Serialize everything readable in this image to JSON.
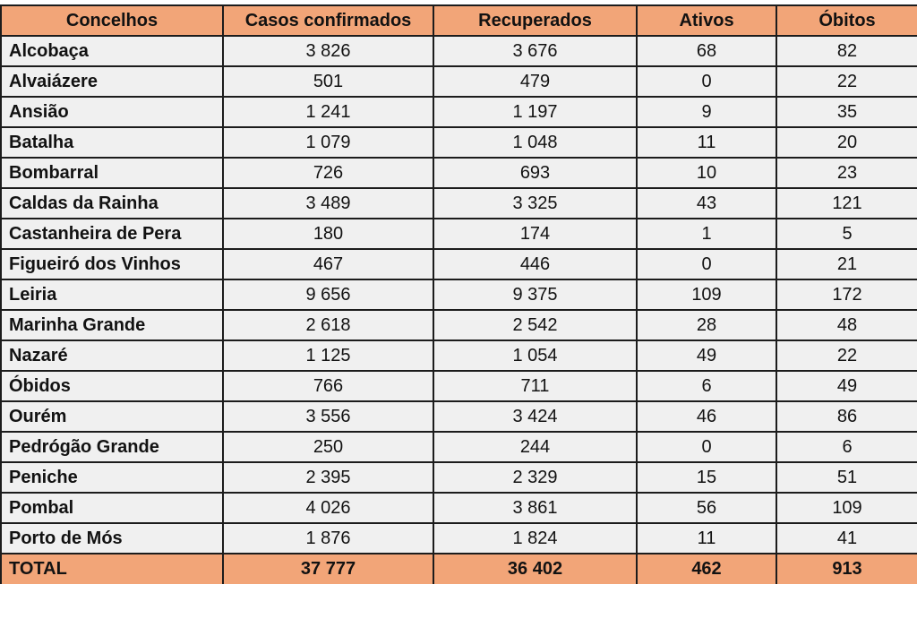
{
  "colors": {
    "header_bg": "#F2A578",
    "total_bg": "#F2A578",
    "row_bg": "#F0F0F0",
    "border": "#1C1C1C",
    "text": "#121212",
    "page_bg": "#FFFFFF"
  },
  "table": {
    "columns": [
      "Concelhos",
      "Casos confirmados",
      "Recuperados",
      "Ativos",
      "Óbitos"
    ],
    "rows": [
      {
        "name": "Alcobaça",
        "values": [
          "3 826",
          "3 676",
          "68",
          "82"
        ]
      },
      {
        "name": "Alvaiázere",
        "values": [
          "501",
          "479",
          "0",
          "22"
        ]
      },
      {
        "name": "Ansião",
        "values": [
          "1 241",
          "1 197",
          "9",
          "35"
        ]
      },
      {
        "name": "Batalha",
        "values": [
          "1 079",
          "1 048",
          "11",
          "20"
        ]
      },
      {
        "name": "Bombarral",
        "values": [
          "726",
          "693",
          "10",
          "23"
        ]
      },
      {
        "name": "Caldas da Rainha",
        "values": [
          "3 489",
          "3 325",
          "43",
          "121"
        ]
      },
      {
        "name": "Castanheira de Pera",
        "values": [
          "180",
          "174",
          "1",
          "5"
        ]
      },
      {
        "name": "Figueiró dos Vinhos",
        "values": [
          "467",
          "446",
          "0",
          "21"
        ]
      },
      {
        "name": "Leiria",
        "values": [
          "9 656",
          "9 375",
          "109",
          "172"
        ]
      },
      {
        "name": "Marinha Grande",
        "values": [
          "2 618",
          "2 542",
          "28",
          "48"
        ]
      },
      {
        "name": "Nazaré",
        "values": [
          "1 125",
          "1 054",
          "49",
          "22"
        ]
      },
      {
        "name": "Óbidos",
        "values": [
          "766",
          "711",
          "6",
          "49"
        ]
      },
      {
        "name": "Ourém",
        "values": [
          "3 556",
          "3 424",
          "46",
          "86"
        ]
      },
      {
        "name": "Pedrógão Grande",
        "values": [
          "250",
          "244",
          "0",
          "6"
        ]
      },
      {
        "name": "Peniche",
        "values": [
          "2 395",
          "2 329",
          "15",
          "51"
        ]
      },
      {
        "name": "Pombal",
        "values": [
          "4 026",
          "3 861",
          "56",
          "109"
        ]
      },
      {
        "name": "Porto de Mós",
        "values": [
          "1 876",
          "1 824",
          "11",
          "41"
        ]
      }
    ],
    "total": {
      "label": "TOTAL",
      "values": [
        "37 777",
        "36 402",
        "462",
        "913"
      ]
    }
  },
  "chart_data": {
    "type": "table",
    "title": "",
    "columns": [
      "Concelhos",
      "Casos confirmados",
      "Recuperados",
      "Ativos",
      "Óbitos"
    ],
    "rows": [
      [
        "Alcobaça",
        3826,
        3676,
        68,
        82
      ],
      [
        "Alvaiázere",
        501,
        479,
        0,
        22
      ],
      [
        "Ansião",
        1241,
        1197,
        9,
        35
      ],
      [
        "Batalha",
        1079,
        1048,
        11,
        20
      ],
      [
        "Bombarral",
        726,
        693,
        10,
        23
      ],
      [
        "Caldas da Rainha",
        3489,
        3325,
        43,
        121
      ],
      [
        "Castanheira de Pera",
        180,
        174,
        1,
        5
      ],
      [
        "Figueiró dos Vinhos",
        467,
        446,
        0,
        21
      ],
      [
        "Leiria",
        9656,
        9375,
        109,
        172
      ],
      [
        "Marinha Grande",
        2618,
        2542,
        28,
        48
      ],
      [
        "Nazaré",
        1125,
        1054,
        49,
        22
      ],
      [
        "Óbidos",
        766,
        711,
        6,
        49
      ],
      [
        "Ourém",
        3556,
        3424,
        46,
        86
      ],
      [
        "Pedrógão Grande",
        250,
        244,
        0,
        6
      ],
      [
        "Peniche",
        2395,
        2329,
        15,
        51
      ],
      [
        "Pombal",
        4026,
        3861,
        56,
        109
      ],
      [
        "Porto de Mós",
        1876,
        1824,
        11,
        41
      ]
    ],
    "total_row": [
      "TOTAL",
      37777,
      36402,
      462,
      913
    ]
  }
}
